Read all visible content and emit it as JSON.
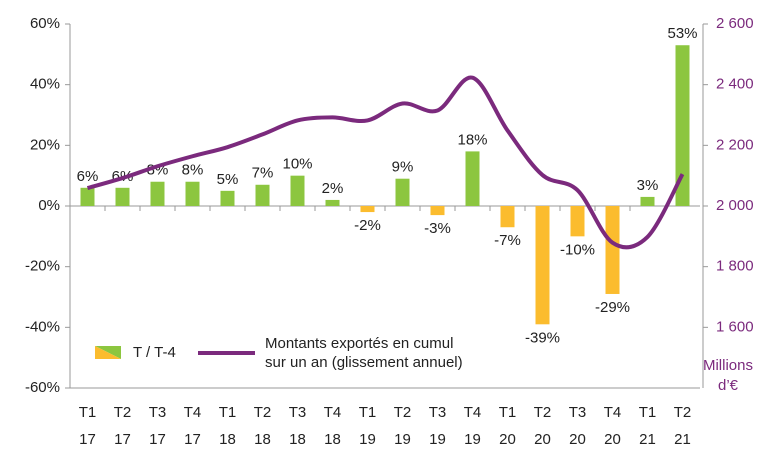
{
  "chart_data": {
    "type": "bar_line",
    "categories": [
      [
        "T1",
        "17"
      ],
      [
        "T2",
        "17"
      ],
      [
        "T3",
        "17"
      ],
      [
        "T4",
        "17"
      ],
      [
        "T1",
        "18"
      ],
      [
        "T2",
        "18"
      ],
      [
        "T3",
        "18"
      ],
      [
        "T4",
        "18"
      ],
      [
        "T1",
        "19"
      ],
      [
        "T2",
        "19"
      ],
      [
        "T3",
        "19"
      ],
      [
        "T4",
        "19"
      ],
      [
        "T1",
        "20"
      ],
      [
        "T2",
        "20"
      ],
      [
        "T3",
        "20"
      ],
      [
        "T4",
        "20"
      ],
      [
        "T1",
        "21"
      ],
      [
        "T2",
        "21"
      ]
    ],
    "series": [
      {
        "name": "T / T-4",
        "color": "#8cc63f",
        "negative_color": "#fbbc2e",
        "values": [
          6,
          6,
          8,
          8,
          5,
          7,
          10,
          2,
          -2,
          9,
          -3,
          18,
          -7,
          -39,
          -10,
          -29,
          3,
          53
        ],
        "value_labels": [
          "6%",
          "6%",
          "8%",
          "8%",
          "5%",
          "7%",
          "10%",
          "2%",
          "-2%",
          "9%",
          "-3%",
          "18%",
          "-7%",
          "-39%",
          "-10%",
          "-29%",
          "3%",
          "53%"
        ]
      },
      {
        "name": [
          "Montants exportés en cumul",
          "sur un an (glissement annuel)"
        ],
        "color": "#7b2a7d",
        "axis": "y2",
        "values": [
          2059,
          2092,
          2131,
          2164,
          2194,
          2236,
          2282,
          2292,
          2282,
          2338,
          2315,
          2423,
          2249,
          2102,
          2052,
          1879,
          1898,
          2105
        ]
      }
    ],
    "ylim": [
      -60,
      60
    ],
    "yticks": [
      {
        "value": -60,
        "label": "-60%"
      },
      {
        "value": -40,
        "label": "-40%"
      },
      {
        "value": -20,
        "label": "-20%"
      },
      {
        "value": 0,
        "label": "0%"
      },
      {
        "value": 20,
        "label": "20%"
      },
      {
        "value": 40,
        "label": "40%"
      },
      {
        "value": 60,
        "label": "60%"
      }
    ],
    "y2lim": [
      1400,
      2600
    ],
    "y2ticks": [
      {
        "value": 1600,
        "label": "1 600"
      },
      {
        "value": 1800,
        "label": "1 800"
      },
      {
        "value": 2000,
        "label": "2 000"
      },
      {
        "value": 2200,
        "label": "2 200"
      },
      {
        "value": 2400,
        "label": "2 400"
      },
      {
        "value": 2600,
        "label": "2 600"
      }
    ],
    "y2label": [
      "Millions",
      "d’€"
    ]
  }
}
